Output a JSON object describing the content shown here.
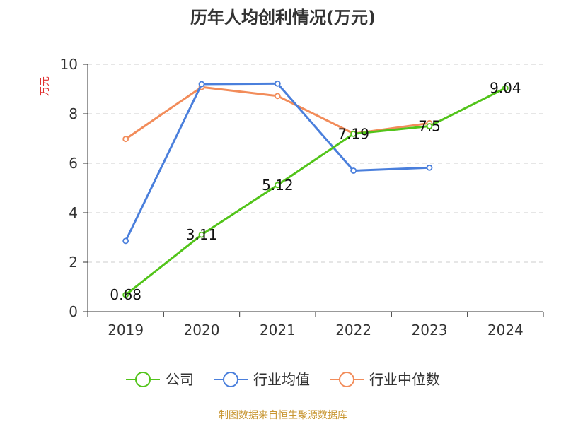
{
  "chart_data": {
    "type": "line",
    "title": "历年人均创利情况(万元)",
    "ylabel": "万元",
    "xlabel": "",
    "categories": [
      "2019",
      "2020",
      "2021",
      "2022",
      "2023",
      "2024"
    ],
    "ylim": [
      0,
      10
    ],
    "yticks": [
      0,
      2,
      4,
      6,
      8,
      10
    ],
    "grid": true,
    "legend_position": "bottom",
    "series": [
      {
        "name": "公司",
        "color": "#52c41a",
        "values": [
          0.68,
          3.11,
          5.12,
          7.19,
          7.5,
          9.04
        ],
        "labels": [
          "0.68",
          "3.11",
          "5.12",
          "7.19",
          "7.5",
          "9.04"
        ]
      },
      {
        "name": "行业均值",
        "color": "#4a7fdc",
        "values": [
          2.86,
          9.2,
          9.22,
          5.7,
          5.82,
          null
        ]
      },
      {
        "name": "行业中位数",
        "color": "#f28c5a",
        "values": [
          6.98,
          9.08,
          8.72,
          7.2,
          7.62,
          null
        ]
      }
    ]
  },
  "footer": {
    "source": "制图数据来自恒生聚源数据库"
  }
}
